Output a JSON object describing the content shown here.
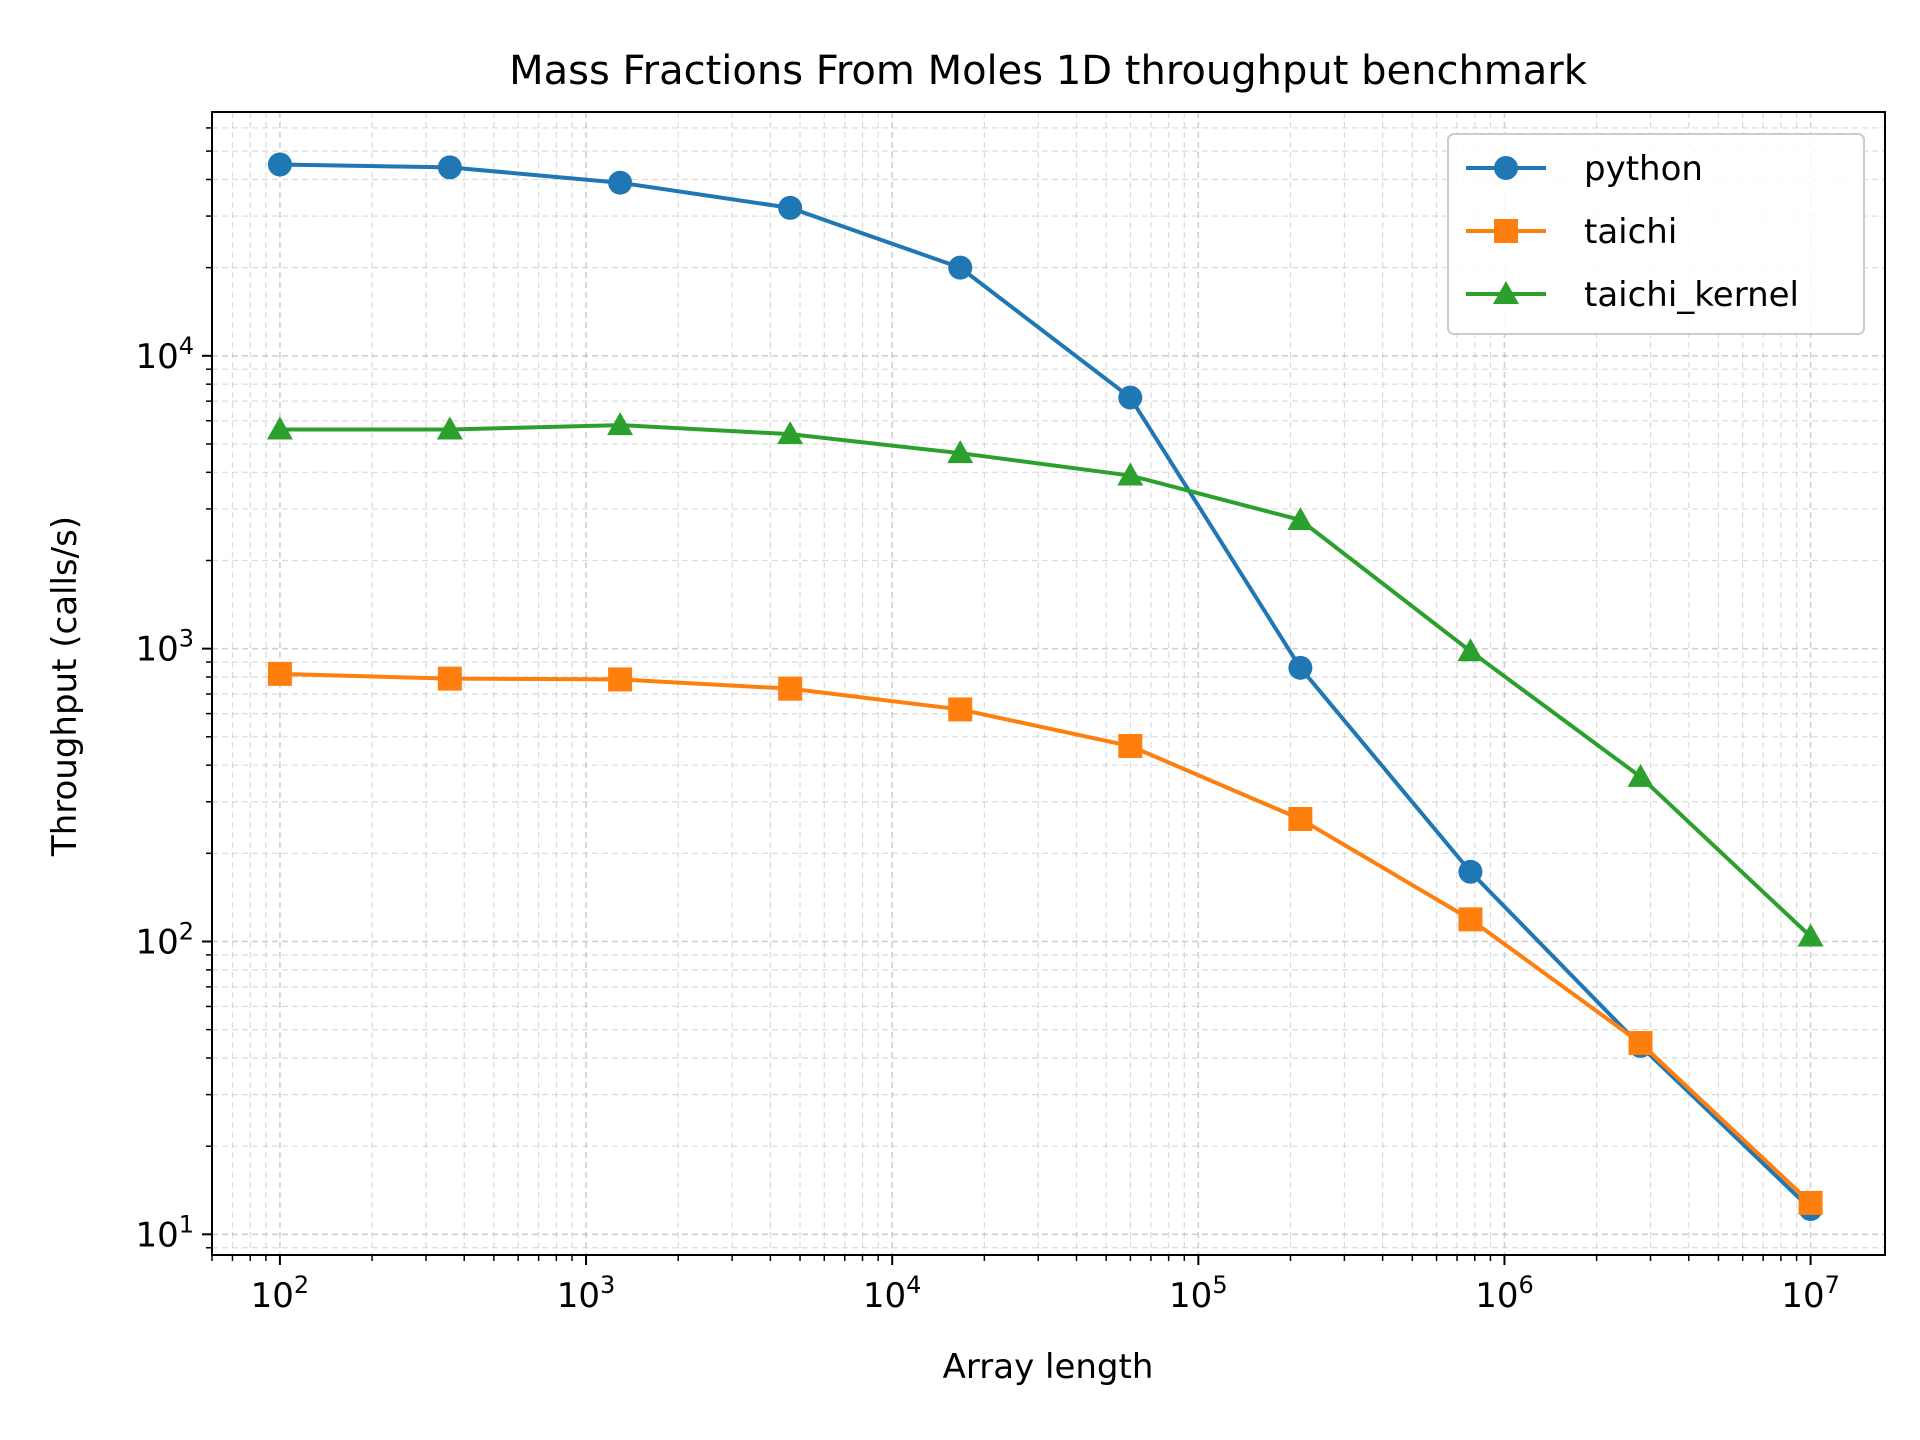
{
  "chart_data": {
    "type": "line",
    "title": "Mass Fractions From Moles 1D throughput benchmark",
    "xlabel": "Array length",
    "ylabel": "Throughput (calls/s)",
    "xscale": "log",
    "yscale": "log",
    "xlim": [
      60,
      17500000
    ],
    "ylim": [
      8.5,
      68000
    ],
    "x_ticks": [
      {
        "value": 100,
        "base": "10",
        "exp": "2"
      },
      {
        "value": 1000,
        "base": "10",
        "exp": "3"
      },
      {
        "value": 10000,
        "base": "10",
        "exp": "4"
      },
      {
        "value": 100000,
        "base": "10",
        "exp": "5"
      },
      {
        "value": 1000000,
        "base": "10",
        "exp": "6"
      },
      {
        "value": 10000000,
        "base": "10",
        "exp": "7"
      }
    ],
    "y_ticks": [
      {
        "value": 10,
        "base": "10",
        "exp": "1"
      },
      {
        "value": 100,
        "base": "10",
        "exp": "2"
      },
      {
        "value": 1000,
        "base": "10",
        "exp": "3"
      },
      {
        "value": 10000,
        "base": "10",
        "exp": "4"
      }
    ],
    "grid": true,
    "legend_position": "top-right",
    "x": [
      100,
      359,
      1292,
      4642,
      16681,
      59948,
      215443,
      774264,
      2782559,
      10000000
    ],
    "series": [
      {
        "name": "python",
        "color": "#1f77b4",
        "marker": "circle",
        "values": [
          45000,
          44000,
          39000,
          32000,
          20000,
          7200,
          860,
          173,
          44,
          12.2
        ]
      },
      {
        "name": "taichi",
        "color": "#ff7f0e",
        "marker": "square",
        "values": [
          820,
          790,
          785,
          730,
          620,
          465,
          262,
          119,
          45,
          12.8
        ]
      },
      {
        "name": "taichi_kernel",
        "color": "#2ca02c",
        "marker": "triangle",
        "values": [
          5600,
          5600,
          5800,
          5400,
          4650,
          3900,
          2750,
          980,
          365,
          104
        ]
      }
    ]
  }
}
